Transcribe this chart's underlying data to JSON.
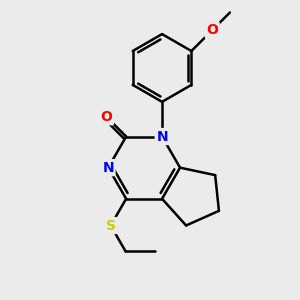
{
  "background_color": "#ebebeb",
  "bond_color": "#000000",
  "bond_width": 1.8,
  "atom_colors": {
    "N": "#0000ff",
    "O": "#ff0000",
    "S": "#cccc00",
    "C": "#000000"
  },
  "font_size_atom": 10,
  "font_size_small": 9
}
